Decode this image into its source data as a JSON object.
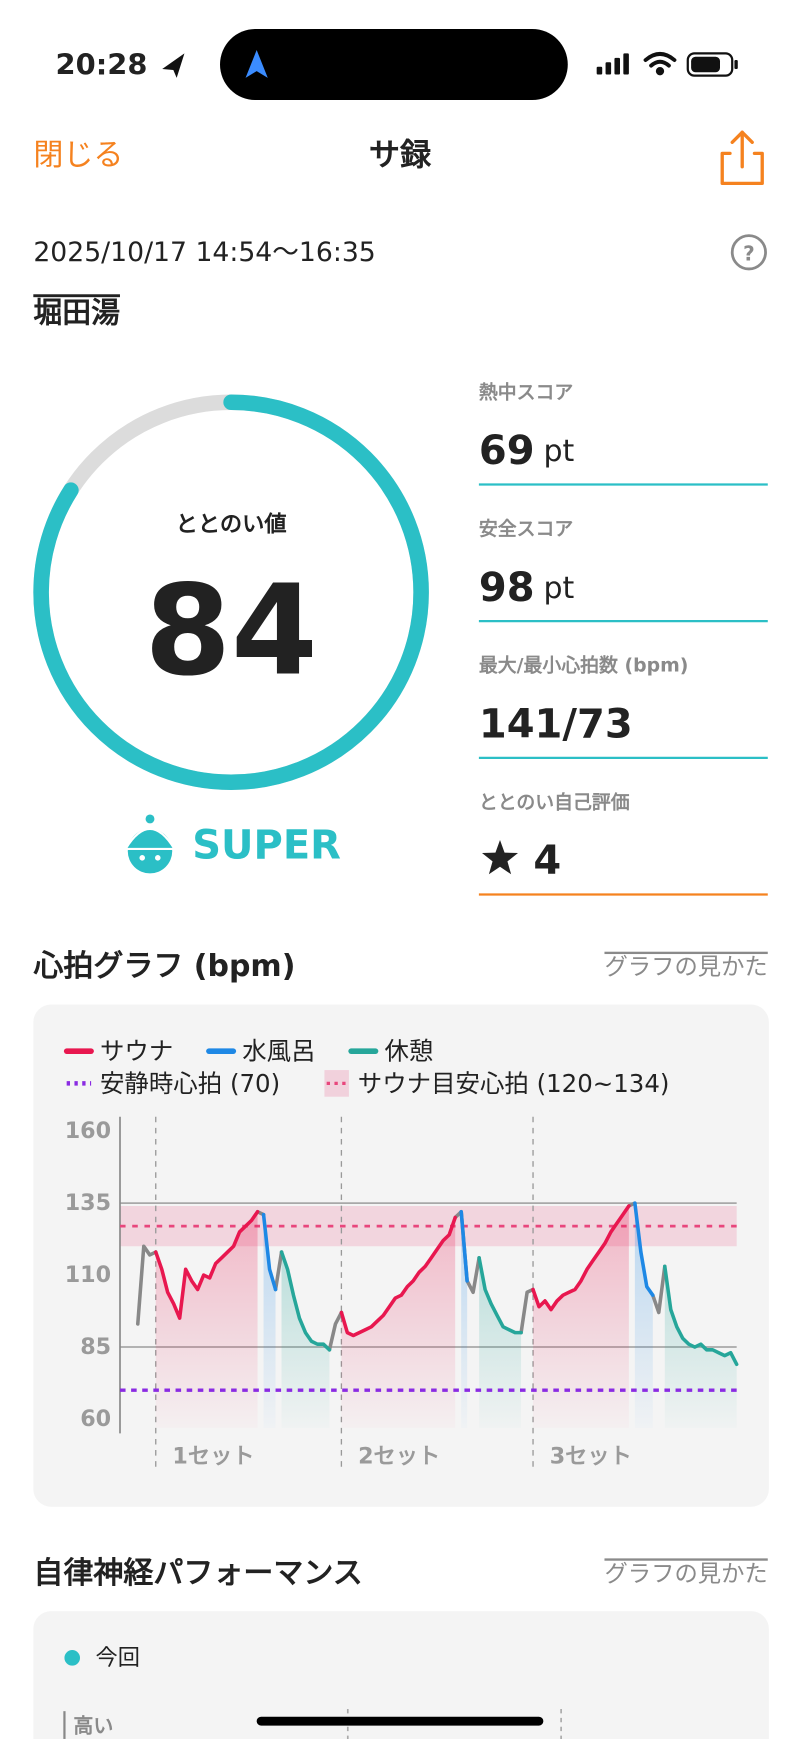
{
  "status_bar": {
    "time": "20:28"
  },
  "nav": {
    "close": "閉じる",
    "title": "サ録"
  },
  "session": {
    "datetime": "2025/10/17 14:54〜16:35",
    "place": "堀田湯"
  },
  "score": {
    "label": "ととのい値",
    "value": 84,
    "range": [
      0,
      100
    ],
    "rank": "SUPER",
    "color": "#2bbfc6"
  },
  "metrics": [
    {
      "label": "熱中スコア",
      "value": 69,
      "unit": "pt"
    },
    {
      "label": "安全スコア",
      "value": 98,
      "unit": "pt"
    },
    {
      "label": "最大/最小心拍数 (bpm)",
      "value": "141/73"
    },
    {
      "label": "ととのい自己評価",
      "value": 4
    }
  ],
  "heart_section": {
    "title": "心拍グラフ (bpm)",
    "link": "グラフの見かた"
  },
  "chart_data": {
    "type": "line",
    "ylim": [
      60,
      160
    ],
    "yticks": [
      60,
      85,
      110,
      135,
      160
    ],
    "ref_lines": [
      85,
      135
    ],
    "resting": {
      "label": "安静時心拍 (70)",
      "value": 70,
      "color": "#8a2be2"
    },
    "target": {
      "label": "サウナ目安心拍 (120~134)",
      "range": [
        120,
        134
      ],
      "color": "#e8467c"
    },
    "set_labels": [
      "1セット",
      "2セット",
      "3セット"
    ],
    "series": [
      {
        "name": "サウナ",
        "color": "#e8174f",
        "values": [
          null,
          null,
          null,
          118,
          112,
          104,
          100,
          95,
          112,
          108,
          105,
          110,
          109,
          114,
          116,
          118,
          120,
          125,
          127,
          129,
          132,
          null,
          null,
          null,
          null,
          null,
          null,
          null,
          null,
          null,
          null,
          null,
          null,
          null,
          97,
          90,
          89,
          90,
          91,
          92,
          94,
          96,
          99,
          102,
          103,
          106,
          108,
          111,
          113,
          116,
          119,
          122,
          124,
          130,
          null,
          null,
          null,
          null,
          null,
          null,
          null,
          null,
          null,
          null,
          null,
          null,
          105,
          99,
          101,
          98,
          101,
          103,
          104,
          105,
          108,
          112,
          115,
          118,
          121,
          125,
          128,
          131,
          134,
          null,
          null,
          null,
          null,
          null,
          null,
          null,
          null,
          null,
          null,
          null,
          null,
          null,
          null,
          null,
          null,
          null,
          null
        ]
      },
      {
        "name": "水風呂",
        "color": "#1e88e5",
        "values": [
          null,
          null,
          null,
          null,
          null,
          null,
          null,
          null,
          null,
          null,
          null,
          null,
          null,
          null,
          null,
          null,
          null,
          null,
          null,
          null,
          null,
          131,
          112,
          105,
          null,
          null,
          null,
          null,
          null,
          null,
          null,
          null,
          null,
          null,
          null,
          null,
          null,
          null,
          null,
          null,
          null,
          null,
          null,
          null,
          null,
          null,
          null,
          null,
          null,
          null,
          null,
          null,
          null,
          null,
          132,
          108,
          null,
          null,
          null,
          null,
          null,
          null,
          null,
          null,
          null,
          null,
          null,
          null,
          null,
          null,
          null,
          null,
          null,
          null,
          null,
          null,
          null,
          null,
          null,
          null,
          null,
          null,
          null,
          135,
          118,
          106,
          103,
          null,
          null,
          null,
          null,
          null,
          null,
          null,
          null,
          null,
          null,
          null,
          null,
          null,
          null
        ]
      },
      {
        "name": "休憩",
        "color": "#26a69a",
        "values": [
          null,
          null,
          null,
          null,
          null,
          null,
          null,
          null,
          null,
          null,
          null,
          null,
          null,
          null,
          null,
          null,
          null,
          null,
          null,
          null,
          null,
          null,
          null,
          null,
          118,
          112,
          103,
          95,
          90,
          87,
          86,
          86,
          84,
          null,
          null,
          null,
          null,
          null,
          null,
          null,
          null,
          null,
          null,
          null,
          null,
          null,
          null,
          null,
          null,
          null,
          null,
          null,
          null,
          null,
          null,
          null,
          null,
          116,
          105,
          100,
          96,
          92,
          91,
          90,
          90,
          null,
          null,
          null,
          null,
          null,
          null,
          null,
          null,
          null,
          null,
          null,
          null,
          null,
          null,
          null,
          null,
          null,
          null,
          null,
          null,
          null,
          null,
          null,
          113,
          98,
          92,
          88,
          86,
          85,
          86,
          84,
          84,
          83,
          82,
          83,
          79
        ]
      },
      {
        "color": "#888888",
        "values": [
          93,
          120,
          117,
          118,
          null,
          null,
          null,
          null,
          null,
          null,
          null,
          null,
          null,
          null,
          null,
          null,
          null,
          null,
          null,
          null,
          132,
          131,
          null,
          105,
          118,
          null,
          null,
          null,
          null,
          null,
          null,
          null,
          84,
          93,
          97,
          null,
          null,
          null,
          null,
          null,
          null,
          null,
          null,
          null,
          null,
          null,
          null,
          null,
          null,
          null,
          null,
          null,
          null,
          130,
          132,
          108,
          104,
          116,
          null,
          null,
          null,
          null,
          null,
          null,
          90,
          104,
          105,
          null,
          null,
          null,
          null,
          null,
          null,
          null,
          null,
          null,
          null,
          null,
          null,
          null,
          null,
          null,
          134,
          135,
          null,
          null,
          103,
          97,
          113,
          null,
          null,
          null,
          null,
          null,
          null,
          null,
          null,
          null,
          null,
          null,
          null
        ]
      }
    ]
  },
  "autonomic": {
    "title": "自律神経パフォーマンス",
    "link": "グラフの見かた",
    "legend": "今回",
    "y_label": "高い"
  }
}
